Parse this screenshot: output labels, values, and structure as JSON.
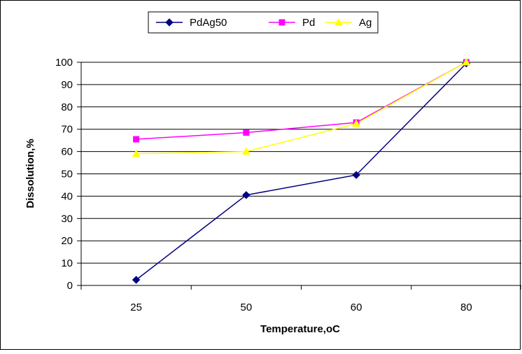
{
  "chart_data": {
    "type": "line",
    "categories": [
      "25",
      "50",
      "60",
      "80"
    ],
    "series": [
      {
        "name": "PdAg50",
        "values": [
          2.5,
          40.5,
          49.5,
          99.5
        ],
        "color": "#000080",
        "marker": "diamond"
      },
      {
        "name": "Pd",
        "values": [
          65.5,
          68.5,
          73,
          100
        ],
        "color": "#FF00FF",
        "marker": "square"
      },
      {
        "name": "Ag",
        "values": [
          59,
          60,
          72.5,
          100
        ],
        "color": "#FFFF00",
        "marker": "triangle"
      }
    ],
    "xlabel": "Temperature,oC",
    "ylabel": "Dissolution,%",
    "ylim": [
      0,
      100
    ],
    "yticks": [
      "0",
      "10",
      "20",
      "30",
      "40",
      "50",
      "60",
      "70",
      "80",
      "90",
      "100"
    ],
    "grid": true,
    "legend_position": "top-center"
  }
}
